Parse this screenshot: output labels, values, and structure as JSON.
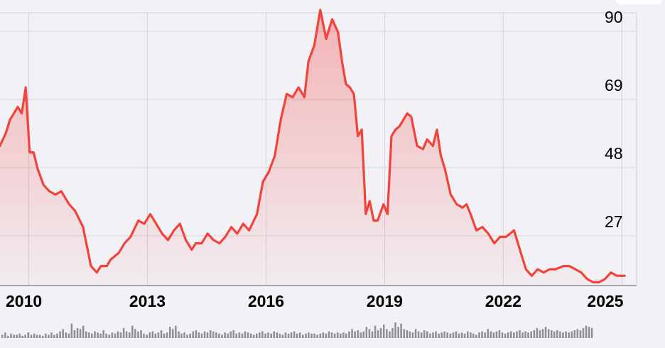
{
  "colors": {
    "background": "#f2f1f6",
    "line": "#f2433a",
    "fill_top": "#f2433a",
    "grid": "#d3d2d8",
    "volume": "#8e8e93"
  },
  "chart_data": {
    "type": "area",
    "title": "",
    "xlabel": "",
    "ylabel": "",
    "x_ticks": [
      "2010",
      "2013",
      "2016",
      "2019",
      "2022",
      "2025"
    ],
    "y_ticks": [
      "27",
      "48",
      "69",
      "90"
    ],
    "ylim": [
      6,
      90
    ],
    "xlim": [
      2009.2,
      2025.3
    ],
    "grid": true,
    "y_axis_position": "right",
    "series": [
      {
        "x": [
          2009.2,
          2009.35,
          2009.45,
          2009.55,
          2009.65,
          2009.75,
          2009.85,
          2009.95,
          2010.05,
          2010.15,
          2010.3,
          2010.45,
          2010.6,
          2010.75,
          2010.95,
          2011.1,
          2011.3,
          2011.5,
          2011.65,
          2011.75,
          2011.9,
          2012.0,
          2012.2,
          2012.35,
          2012.5,
          2012.7,
          2012.85,
          2013.0,
          2013.15,
          2013.3,
          2013.45,
          2013.6,
          2013.75,
          2013.9,
          2014.05,
          2014.15,
          2014.3,
          2014.45,
          2014.6,
          2014.75,
          2014.9,
          2015.05,
          2015.2,
          2015.35,
          2015.5,
          2015.7,
          2015.85,
          2016.0,
          2016.15,
          2016.3,
          2016.45,
          2016.6,
          2016.75,
          2016.9,
          2017.0,
          2017.15,
          2017.3,
          2017.45,
          2017.6,
          2017.75,
          2017.85,
          2017.95,
          2018.05,
          2018.15,
          2018.25,
          2018.35,
          2018.45,
          2018.55,
          2018.65,
          2018.75,
          2018.9,
          2019.0,
          2019.1,
          2019.2,
          2019.3,
          2019.4,
          2019.5,
          2019.6,
          2019.75,
          2019.9,
          2020.0,
          2020.15,
          2020.25,
          2020.35,
          2020.45,
          2020.6,
          2020.75,
          2020.9,
          2021.0,
          2021.1,
          2021.25,
          2021.4,
          2021.55,
          2021.7,
          2021.85,
          2022.0,
          2022.1,
          2022.2,
          2022.35,
          2022.5,
          2022.65,
          2022.8,
          2022.95,
          2023.1,
          2023.25,
          2023.45,
          2023.6,
          2023.75,
          2023.9,
          2024.05,
          2024.2,
          2024.35,
          2024.5,
          2024.65,
          2024.8,
          2024.95,
          2025.0
        ],
        "y": [
          49,
          53,
          57,
          59,
          61,
          59,
          67,
          47,
          47,
          42,
          37,
          35,
          34,
          35,
          31,
          29,
          24,
          12,
          10,
          12,
          12,
          14,
          16,
          19,
          21,
          26,
          25,
          28,
          25,
          22,
          20,
          23,
          25,
          20,
          17,
          19,
          19,
          22,
          20,
          19,
          21,
          24,
          22,
          25,
          23,
          28,
          38,
          41,
          46,
          57,
          65,
          64,
          67,
          64,
          75,
          80,
          97,
          82,
          88,
          84,
          75,
          68,
          67,
          65,
          52,
          54,
          28,
          32,
          26,
          26,
          31,
          28,
          52,
          54,
          55,
          57,
          59,
          58,
          49,
          48,
          51,
          49,
          54,
          46,
          42,
          34,
          31,
          30,
          31,
          28,
          23,
          24,
          22,
          19,
          21,
          21,
          22,
          23,
          17,
          11,
          9,
          11,
          10,
          11,
          11,
          12,
          12,
          11,
          10,
          8,
          7,
          7,
          8,
          10,
          9,
          9,
          9
        ]
      }
    ],
    "volume": [
      3,
      5,
      2,
      4,
      3,
      3,
      4,
      2,
      3,
      5,
      3,
      4,
      3,
      3,
      2,
      4,
      3,
      5,
      3,
      4,
      6,
      8,
      5,
      4,
      13,
      7,
      9,
      8,
      11,
      6,
      5,
      4,
      6,
      5,
      4,
      7,
      4,
      3,
      5,
      4,
      6,
      5,
      9,
      6,
      5,
      11,
      8,
      6,
      7,
      4,
      3,
      5,
      6,
      4,
      5,
      7,
      4,
      5,
      10,
      8,
      11,
      6,
      4,
      5,
      3,
      4,
      6,
      7,
      5,
      4,
      6,
      5,
      7,
      6,
      5,
      4,
      3,
      5,
      4,
      6,
      7,
      4,
      5,
      4,
      6,
      5,
      4,
      3,
      4,
      5,
      6,
      4,
      5,
      4,
      6,
      5,
      4,
      3,
      5,
      4,
      5,
      6,
      4,
      5,
      3,
      4,
      5,
      4,
      4,
      3,
      4,
      5,
      4,
      6,
      5,
      4,
      5,
      4,
      5,
      4,
      6,
      8,
      6,
      7,
      5,
      6,
      10,
      8,
      6,
      11,
      7,
      9,
      12,
      8,
      6,
      9,
      14,
      10,
      13,
      8,
      7,
      6,
      5,
      8,
      6,
      5,
      7,
      6,
      4,
      5,
      6,
      4,
      5,
      6,
      5,
      4,
      5,
      6,
      4,
      5,
      4,
      6,
      5,
      4,
      3,
      5,
      6,
      5,
      8,
      6,
      5,
      6,
      7,
      5,
      4,
      5,
      6,
      5,
      6,
      7,
      5,
      6,
      5,
      6,
      7,
      9,
      7,
      8,
      10,
      8,
      7,
      6,
      7,
      6,
      5,
      6,
      5,
      6,
      7,
      8,
      7,
      9,
      11,
      10,
      9
    ]
  }
}
